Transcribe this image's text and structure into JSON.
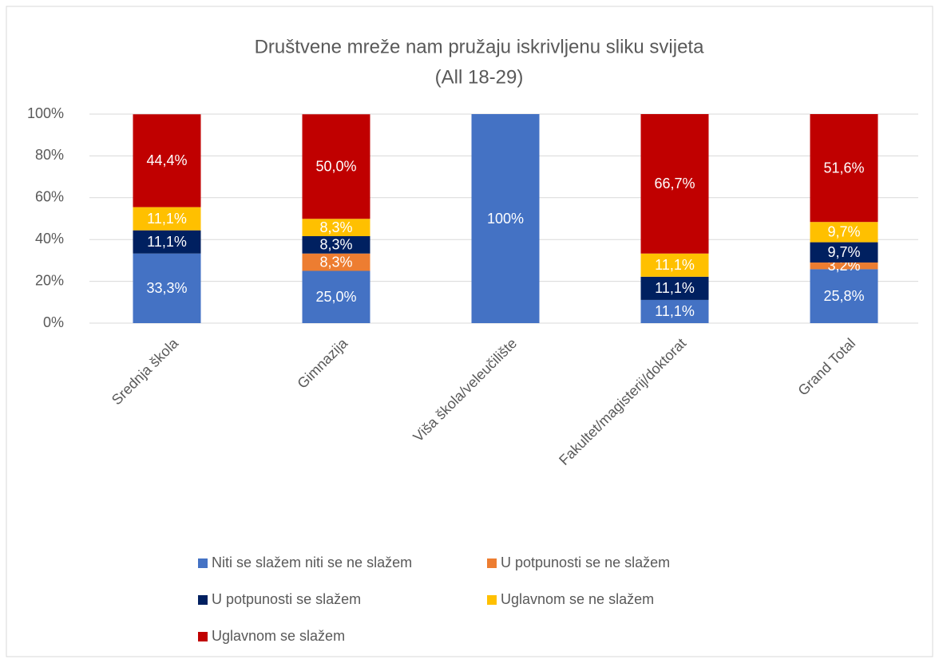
{
  "chart_data": {
    "type": "stacked_bar",
    "title": "Društvene mreže nam pružaju iskrivljenu sliku svijeta",
    "subtitle": "(All 18-29)",
    "categories": [
      "Srednja škola",
      "Gimnazija",
      "Viša škola/veleučilište",
      "Fakultet/magisterij/doktorat",
      "Grand Total"
    ],
    "series": [
      {
        "name": "Niti se slažem niti se ne slažem",
        "color": "#4472c4",
        "values": [
          33.3,
          25.0,
          100,
          11.1,
          25.8
        ],
        "value_labels": [
          "33,3%",
          "25,0%",
          "100%",
          "11,1%",
          "25,8%"
        ]
      },
      {
        "name": "U potpunosti se ne slažem",
        "color": "#ed7d31",
        "values": [
          null,
          8.3,
          null,
          null,
          3.2
        ],
        "value_labels": [
          null,
          "8,3%",
          null,
          null,
          "3,2%"
        ]
      },
      {
        "name": "U potpunosti se slažem",
        "color": "#002060",
        "values": [
          11.1,
          8.3,
          null,
          11.1,
          9.7
        ],
        "value_labels": [
          "11,1%",
          "8,3%",
          null,
          "11,1%",
          "9,7%"
        ]
      },
      {
        "name": "Uglavnom se ne slažem",
        "color": "#ffc000",
        "values": [
          11.1,
          8.3,
          null,
          11.1,
          9.7
        ],
        "value_labels": [
          "11,1%",
          "8,3%",
          null,
          "11,1%",
          "9,7%"
        ]
      },
      {
        "name": "Uglavnom se slažem",
        "color": "#c00000",
        "values": [
          44.4,
          50.0,
          null,
          66.7,
          51.6
        ],
        "value_labels": [
          "44,4%",
          "50,0%",
          null,
          "66,7%",
          "51,6%"
        ]
      }
    ],
    "ylim": [
      0,
      100
    ],
    "yticks": [
      {
        "value": 0,
        "label": "0%"
      },
      {
        "value": 20,
        "label": "20%"
      },
      {
        "value": 40,
        "label": "40%"
      },
      {
        "value": 60,
        "label": "60%"
      },
      {
        "value": 80,
        "label": "80%"
      },
      {
        "value": 100,
        "label": "100%"
      }
    ],
    "grid": true,
    "legend": "bottom"
  }
}
